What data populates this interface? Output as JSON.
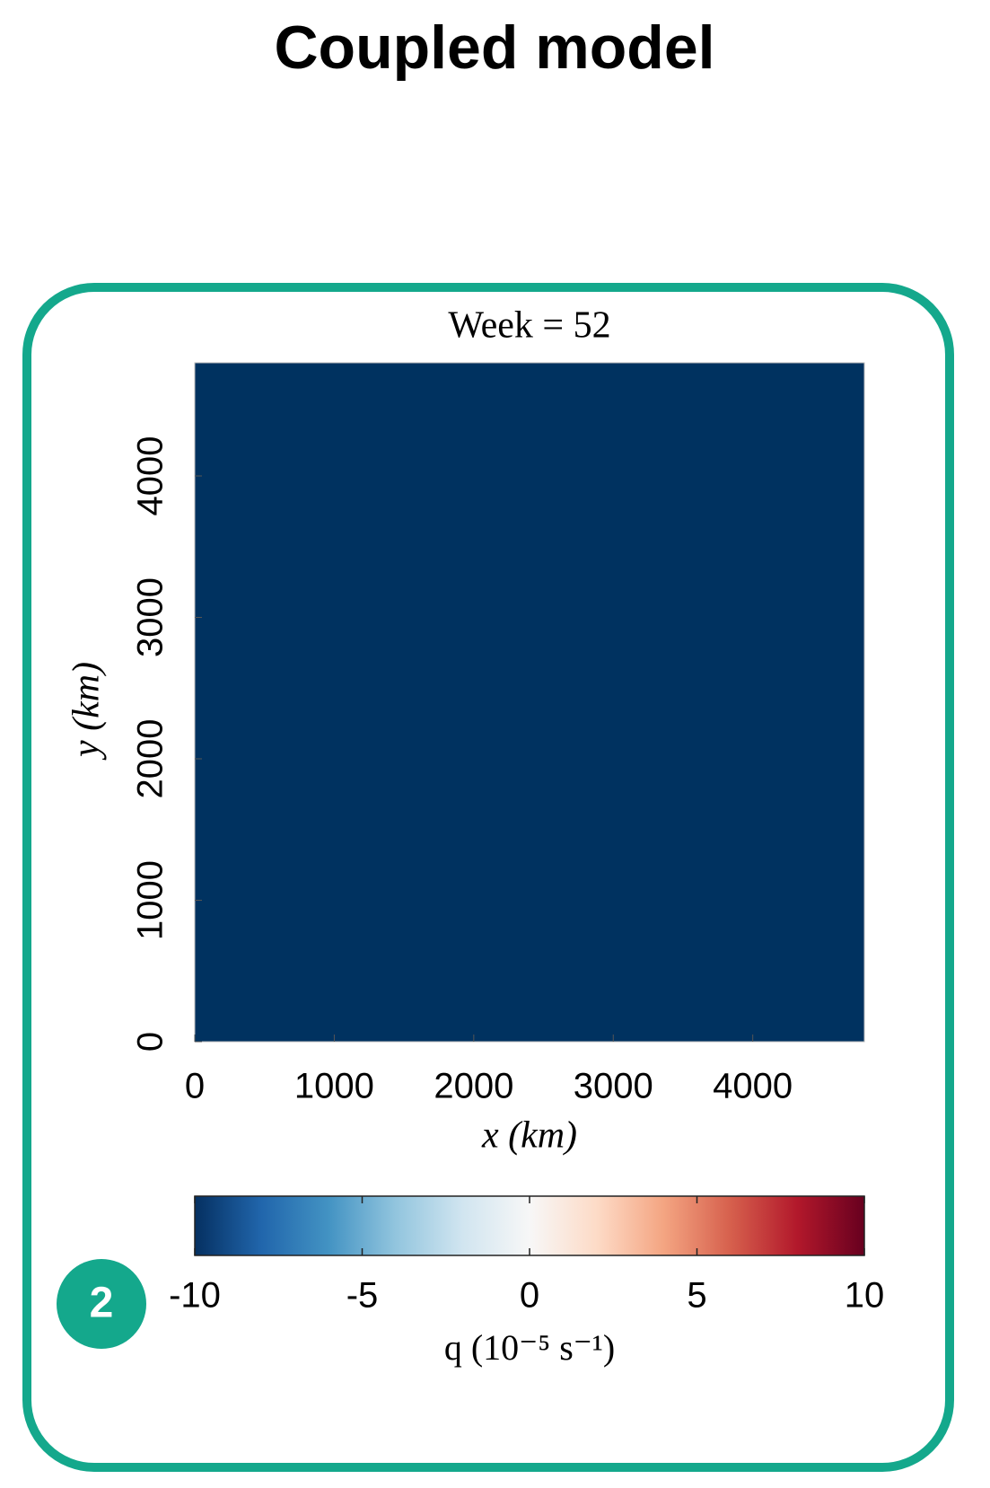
{
  "title": "Coupled model",
  "badge": "2",
  "chart_data": {
    "type": "heatmap",
    "title": "Week = 52",
    "x_label": "x (km)",
    "y_label": "y (km)",
    "xlim": [
      0,
      4800
    ],
    "ylim": [
      0,
      4800
    ],
    "xticks": [
      0,
      1000,
      2000,
      3000,
      4000
    ],
    "yticks": [
      0,
      1000,
      2000,
      3000,
      4000
    ],
    "colorbar": {
      "label": "q (10⁻⁵ s⁻¹)",
      "lim": [
        -10,
        10
      ],
      "ticks": [
        -10,
        -5,
        0,
        5,
        10
      ],
      "colormap": [
        "#053061",
        "#2166ac",
        "#4393c3",
        "#92c5de",
        "#d1e5f0",
        "#f7f7f7",
        "#fddbc7",
        "#f4a582",
        "#d6604d",
        "#b2182b",
        "#67001f"
      ]
    },
    "frame_color": "#14a88c"
  }
}
